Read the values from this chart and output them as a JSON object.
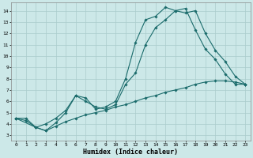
{
  "xlabel": "Humidex (Indice chaleur)",
  "background_color": "#cce8e8",
  "grid_color": "#aacccc",
  "line_color": "#1a6b6b",
  "xlim": [
    -0.5,
    23.5
  ],
  "ylim": [
    2.5,
    14.7
  ],
  "xticks": [
    0,
    1,
    2,
    3,
    4,
    5,
    6,
    7,
    8,
    9,
    10,
    11,
    12,
    13,
    14,
    15,
    16,
    17,
    18,
    19,
    20,
    21,
    22,
    23
  ],
  "yticks": [
    3,
    4,
    5,
    6,
    7,
    8,
    9,
    10,
    11,
    12,
    13,
    14
  ],
  "curve1_x": [
    0,
    1,
    2,
    3,
    4,
    5,
    6,
    7,
    8,
    9,
    10,
    11,
    12,
    13,
    14,
    15,
    16,
    17,
    18,
    19,
    20,
    21,
    22,
    23
  ],
  "curve1_y": [
    4.5,
    4.5,
    3.7,
    3.4,
    4.1,
    5.0,
    6.5,
    6.3,
    5.3,
    5.5,
    6.0,
    8.0,
    11.2,
    13.2,
    13.5,
    14.3,
    14.0,
    14.2,
    12.3,
    10.6,
    9.7,
    8.4,
    7.5,
    7.5
  ],
  "curve2_x": [
    0,
    2,
    3,
    4,
    5,
    6,
    7,
    8,
    9,
    10,
    11,
    12,
    13,
    14,
    15,
    16,
    17,
    18,
    19,
    20,
    21,
    22,
    23
  ],
  "curve2_y": [
    4.5,
    3.7,
    4.0,
    4.5,
    5.2,
    6.5,
    6.0,
    5.5,
    5.3,
    5.7,
    7.5,
    8.5,
    11.0,
    12.5,
    13.2,
    14.0,
    13.8,
    14.0,
    12.0,
    10.5,
    9.5,
    8.2,
    7.5
  ],
  "curve3_x": [
    0,
    1,
    2,
    3,
    4,
    5,
    6,
    7,
    8,
    9,
    10,
    11,
    12,
    13,
    14,
    15,
    16,
    17,
    18,
    19,
    20,
    21,
    22,
    23
  ],
  "curve3_y": [
    4.5,
    4.3,
    3.7,
    3.4,
    3.8,
    4.2,
    4.5,
    4.8,
    5.0,
    5.2,
    5.5,
    5.7,
    6.0,
    6.3,
    6.5,
    6.8,
    7.0,
    7.2,
    7.5,
    7.7,
    7.8,
    7.8,
    7.7,
    7.5
  ]
}
